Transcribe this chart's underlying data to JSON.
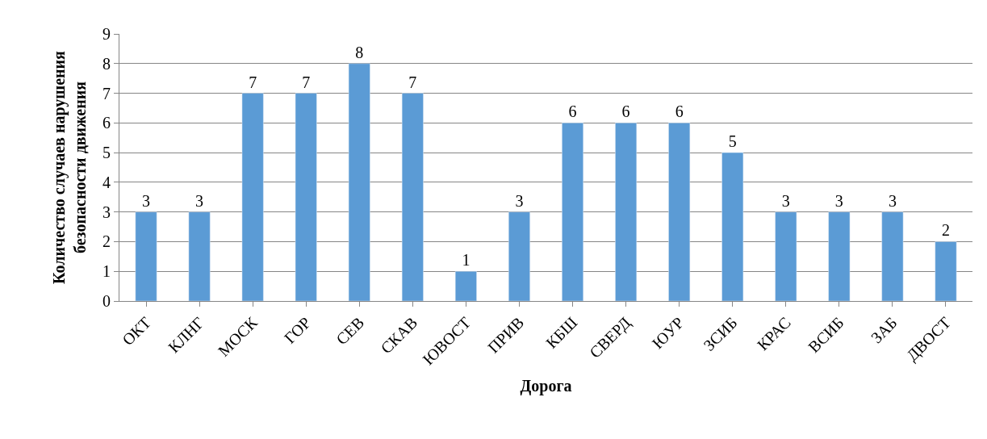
{
  "chart_data": {
    "type": "bar",
    "xlabel": "Дорога",
    "ylabel": "Количество случаев нарушения безопасности движения",
    "categories": [
      "ОКТ",
      "КЛНГ",
      "МОСК",
      "ГОР",
      "СЕВ",
      "СКАВ",
      "ЮВОСТ",
      "ПРИВ",
      "КБШ",
      "СВЕРД",
      "ЮУР",
      "ЗСИБ",
      "КРАС",
      "ВСИБ",
      "ЗАБ",
      "ДВОСТ"
    ],
    "values": [
      3,
      3,
      7,
      7,
      8,
      7,
      1,
      3,
      6,
      6,
      6,
      5,
      3,
      3,
      3,
      2
    ],
    "color": "#5b9bd5",
    "ylim": [
      0,
      9
    ],
    "yticks": [
      0,
      1,
      2,
      3,
      4,
      5,
      6,
      7,
      8,
      9
    ],
    "grid": "y",
    "data_labels": true
  }
}
